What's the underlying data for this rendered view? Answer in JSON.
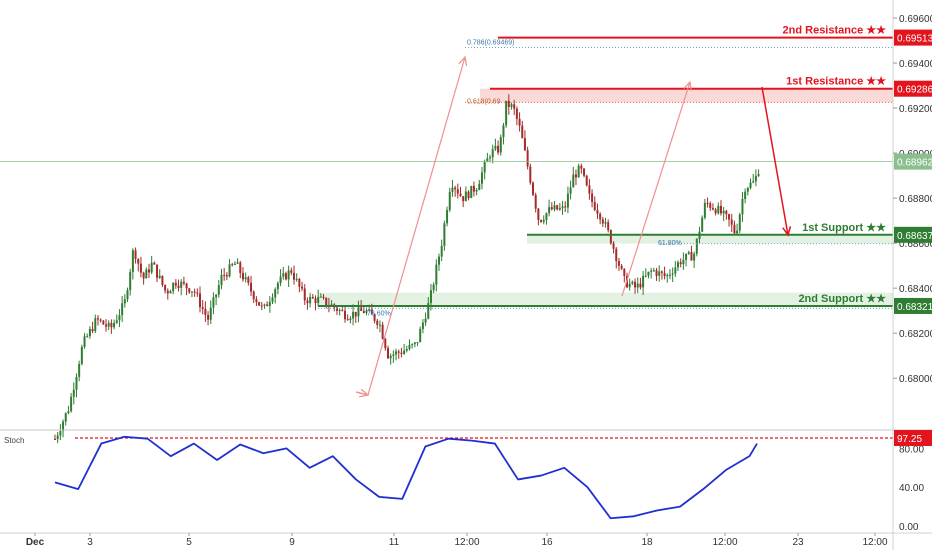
{
  "chart_data": [
    {
      "type": "candlestick",
      "title": "",
      "xlabel": "",
      "ylabel": "",
      "ylim": [
        0.6777,
        0.6968
      ],
      "x_ticks": [
        "Dec",
        "3",
        "5",
        "9",
        "11",
        "12:00",
        "16",
        "18",
        "12:00",
        "23",
        "12:00"
      ],
      "y_ticks": [
        "0.69600",
        "0.69400",
        "0.69200",
        "0.69000",
        "0.68800",
        "0.68600",
        "0.68400",
        "0.68200",
        "0.68000"
      ],
      "grid": false,
      "close_path": [
        [
          0,
          0.6773
        ],
        [
          0.3,
          0.6787
        ],
        [
          0.6,
          0.6815
        ],
        [
          0.9,
          0.6826
        ],
        [
          1.2,
          0.6822
        ],
        [
          1.5,
          0.6833
        ],
        [
          1.7,
          0.6858
        ],
        [
          1.9,
          0.6844
        ],
        [
          2.1,
          0.6851
        ],
        [
          2.4,
          0.6838
        ],
        [
          2.6,
          0.6843
        ],
        [
          3.0,
          0.6839
        ],
        [
          3.3,
          0.6826
        ],
        [
          3.6,
          0.6845
        ],
        [
          3.9,
          0.6851
        ],
        [
          4.2,
          0.684
        ],
        [
          4.5,
          0.683
        ],
        [
          4.8,
          0.6842
        ],
        [
          5.1,
          0.6848
        ],
        [
          5.4,
          0.6835
        ],
        [
          5.7,
          0.6835
        ],
        [
          6.0,
          0.6832
        ],
        [
          6.3,
          0.6828
        ],
        [
          6.7,
          0.683
        ],
        [
          7.0,
          0.6825
        ],
        [
          7.2,
          0.681
        ],
        [
          7.5,
          0.6812
        ],
        [
          7.8,
          0.6815
        ],
        [
          8.1,
          0.6835
        ],
        [
          8.35,
          0.686
        ],
        [
          8.55,
          0.6888
        ],
        [
          8.8,
          0.688
        ],
        [
          9.1,
          0.6885
        ],
        [
          9.4,
          0.69
        ],
        [
          9.6,
          0.6902
        ],
        [
          9.75,
          0.6922
        ],
        [
          9.9,
          0.692
        ],
        [
          10.05,
          0.691
        ],
        [
          10.2,
          0.6895
        ],
        [
          10.45,
          0.687
        ],
        [
          10.7,
          0.6875
        ],
        [
          11.0,
          0.6875
        ],
        [
          11.2,
          0.689
        ],
        [
          11.35,
          0.6893
        ],
        [
          11.55,
          0.688
        ],
        [
          11.8,
          0.6872
        ],
        [
          12.0,
          0.6862
        ],
        [
          12.3,
          0.6843
        ],
        [
          12.55,
          0.684
        ],
        [
          12.9,
          0.6848
        ],
        [
          13.2,
          0.6845
        ],
        [
          13.5,
          0.6852
        ],
        [
          13.8,
          0.6855
        ],
        [
          14.05,
          0.6878
        ],
        [
          14.3,
          0.6875
        ],
        [
          14.55,
          0.687
        ],
        [
          14.7,
          0.6864
        ],
        [
          14.9,
          0.6885
        ],
        [
          15.1,
          0.6887
        ],
        [
          15.25,
          0.6896
        ]
      ],
      "levels": [
        {
          "label": "2nd Resistance ★★",
          "value": "0.69513",
          "color": "#e3141e"
        },
        {
          "label": "1st Resistance ★★",
          "value": "0.69286",
          "color": "#e3141e"
        },
        {
          "label": "1st Support ★★",
          "value": "0.68637",
          "color": "#2e7d32"
        },
        {
          "label": "2nd Support ★★",
          "value": "0.68321",
          "color": "#2e7d32"
        }
      ],
      "current_price": "0.68962",
      "fib_labels": [
        "0.786(0.69469)",
        "0.618(0.69",
        "78.60%",
        "61.80%"
      ],
      "colors": {
        "up": "#2e7d32",
        "down": "#a52a2a",
        "resistance": "#e3141e",
        "support": "#2e7d32",
        "arrow": "#f08f8f",
        "price_tag": "#8bbf8e"
      }
    },
    {
      "type": "line",
      "title": "Stoch",
      "ylim": [
        0,
        100
      ],
      "y_ticks": [
        "80.00",
        "40.00",
        "0.00"
      ],
      "overbought_level": "97.25",
      "series": [
        {
          "x": [
            0,
            0.5,
            1.0,
            1.5,
            2.0,
            2.5,
            3.0,
            3.5,
            4.0,
            4.5,
            5.0,
            5.5,
            6.0,
            6.5,
            7.0,
            7.5,
            8.0,
            8.5,
            9.0,
            9.5,
            10.0,
            10.5,
            11.0,
            11.5,
            12.0,
            12.5,
            13.0,
            13.5,
            14.0,
            14.5,
            15.0,
            15.3
          ],
          "values": [
            45,
            38,
            85,
            92,
            90,
            72,
            85,
            68,
            84,
            75,
            80,
            60,
            72,
            48,
            30,
            28,
            82,
            90,
            88,
            85,
            48,
            52,
            60,
            40,
            8,
            10,
            16,
            20,
            38,
            58,
            72,
            85
          ],
          "color": "#1f2fd1"
        }
      ]
    }
  ]
}
